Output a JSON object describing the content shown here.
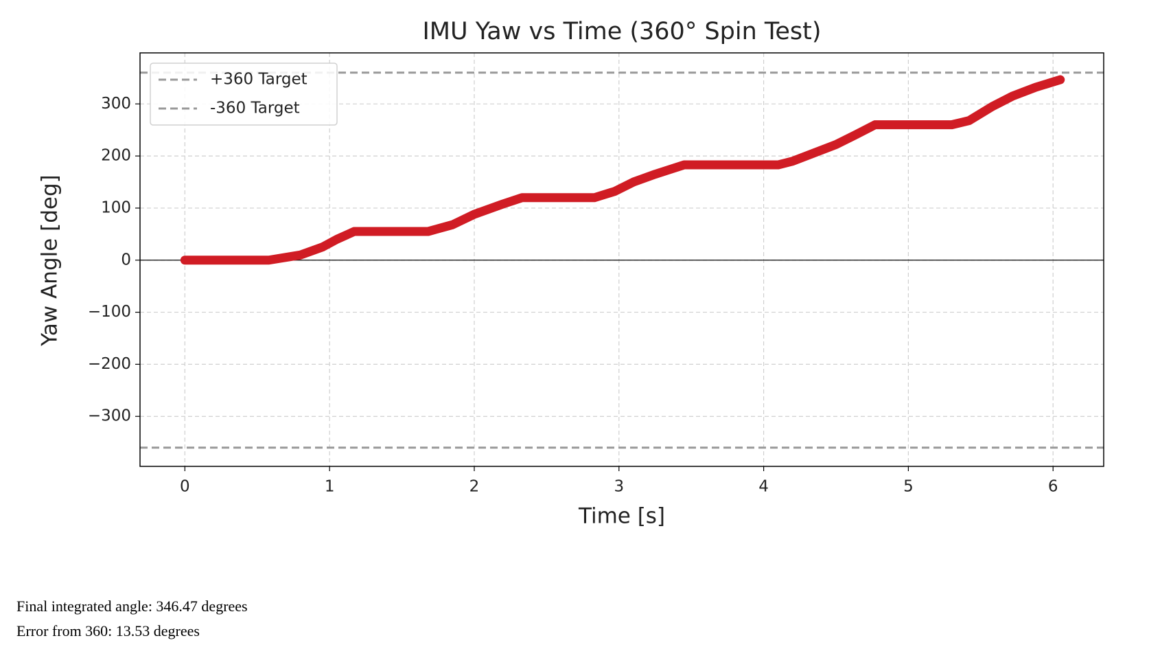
{
  "chart_data": {
    "type": "line",
    "title": "IMU Yaw vs Time (360° Spin Test)",
    "x_label": "Time [s]",
    "y_label": "Yaw Angle [deg]",
    "x": [
      0,
      0.58,
      0.8,
      0.95,
      1.05,
      1.17,
      1.68,
      1.85,
      2.0,
      2.2,
      2.33,
      2.83,
      2.97,
      3.1,
      3.25,
      3.45,
      4.1,
      4.2,
      4.35,
      4.5,
      4.63,
      4.77,
      5.3,
      5.42,
      5.58,
      5.72,
      5.88,
      6.05
    ],
    "series": [
      {
        "color": "#d01c24",
        "values": [
          0,
          0,
          10,
          25,
          40,
          55,
          55,
          68,
          88,
          108,
          120,
          120,
          132,
          150,
          165,
          183,
          183,
          190,
          206,
          222,
          240,
          260,
          260,
          268,
          295,
          315,
          332,
          346.47
        ]
      }
    ],
    "hlines": [
      {
        "name": "+360 Target",
        "value": 360,
        "color": "#999999",
        "dashed": true
      },
      {
        "name": "-360 Target",
        "value": -360,
        "color": "#999999",
        "dashed": true
      },
      {
        "value": 0,
        "color": "#000000",
        "dashed": false
      }
    ],
    "xlim": [
      -0.31,
      6.35
    ],
    "xticks": [
      0,
      1,
      2,
      3,
      4,
      5,
      6
    ],
    "ylim": [
      -396,
      398
    ],
    "yticks": [
      {
        "value": -300,
        "label": "−300"
      },
      {
        "value": -200,
        "label": "−200"
      },
      {
        "value": -100,
        "label": "−100"
      },
      0,
      100,
      200,
      300
    ],
    "grid": true,
    "legend": "upper left"
  },
  "notes": [
    "Final integrated angle: 346.47 degrees",
    "Error from 360: 13.53 degrees"
  ]
}
